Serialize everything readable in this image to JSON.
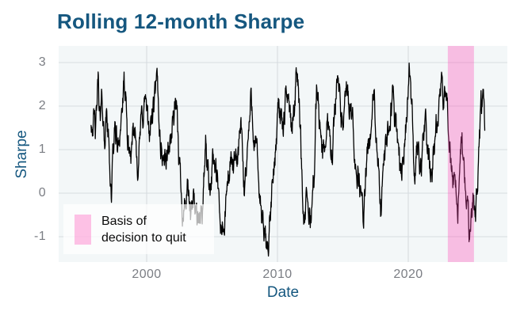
{
  "title": "Rolling 12-month Sharpe",
  "colors": {
    "page_bg": "#ffffff",
    "panel_bg": "#f3f7f8",
    "grid": "#d7dce0",
    "title": "#15577f",
    "axis_title": "#15577f",
    "tick_label": "#7b7e84",
    "line": "#000000",
    "band_pink": "#ff45b5",
    "legend_bg": "#ffffff"
  },
  "chart_data": {
    "type": "line",
    "title": "Rolling 12-month Sharpe",
    "xlabel": "Date",
    "ylabel": "Sharpe",
    "x_ticks": [
      2000,
      2010,
      2020
    ],
    "y_ticks": [
      -1,
      0,
      1,
      2,
      3
    ],
    "xlim": [
      1993.27,
      2027.58
    ],
    "ylim": [
      -1.582,
      3.382
    ],
    "grid": true,
    "line_color": "#000000",
    "highlight_band": {
      "x0": 2023.03,
      "x1": 2025.03,
      "color": "#ff45b5",
      "opacity": 0.32,
      "label": "Basis of decision to quit"
    },
    "legend": {
      "position": "bottom-left",
      "lines": [
        "Basis of",
        "decision to quit"
      ],
      "bg_opacity": 0.7
    },
    "series": [
      {
        "name": "rolling_12m_sharpe",
        "keypoints": [
          [
            1995.75,
            1.68
          ],
          [
            1995.9,
            1.85
          ],
          [
            1996.1,
            1.3
          ],
          [
            1996.3,
            2.61
          ],
          [
            1996.45,
            1.55
          ],
          [
            1996.6,
            2.05
          ],
          [
            1996.75,
            1.3
          ],
          [
            1996.95,
            1.85
          ],
          [
            1997.1,
            1.1
          ],
          [
            1997.3,
            0.02
          ],
          [
            1997.45,
            1.0
          ],
          [
            1997.6,
            1.5
          ],
          [
            1997.8,
            0.95
          ],
          [
            1998.0,
            1.7
          ],
          [
            1998.3,
            2.38
          ],
          [
            1998.55,
            1.05
          ],
          [
            1998.9,
            0.8
          ],
          [
            1999.1,
            1.4
          ],
          [
            1999.3,
            0.8
          ],
          [
            1999.6,
            1.6
          ],
          [
            1999.9,
            2.22
          ],
          [
            2000.1,
            1.3
          ],
          [
            2000.4,
            1.7
          ],
          [
            2000.8,
            2.35
          ],
          [
            2001.1,
            1.05
          ],
          [
            2001.5,
            0.75
          ],
          [
            2001.8,
            1.25
          ],
          [
            2002.2,
            2.04
          ],
          [
            2002.5,
            0.65
          ],
          [
            2002.8,
            -0.38
          ],
          [
            2003.1,
            0.0
          ],
          [
            2003.4,
            -0.6
          ],
          [
            2003.7,
            -0.1
          ],
          [
            2004.0,
            -0.75
          ],
          [
            2004.3,
            -0.25
          ],
          [
            2004.5,
            1.16
          ],
          [
            2004.8,
            0.3
          ],
          [
            2005.1,
            0.75
          ],
          [
            2005.4,
            0.2
          ],
          [
            2005.6,
            -0.8
          ],
          [
            2005.9,
            -0.84
          ],
          [
            2006.2,
            0.2
          ],
          [
            2006.5,
            0.85
          ],
          [
            2006.8,
            0.4
          ],
          [
            2007.2,
            1.47
          ],
          [
            2007.45,
            0.0
          ],
          [
            2007.7,
            1.05
          ],
          [
            2008.0,
            2.16
          ],
          [
            2008.3,
            1.2
          ],
          [
            2008.6,
            0.1
          ],
          [
            2008.9,
            -0.9
          ],
          [
            2009.2,
            -1.35
          ],
          [
            2009.5,
            -0.4
          ],
          [
            2009.8,
            0.8
          ],
          [
            2010.1,
            2.29
          ],
          [
            2010.4,
            1.35
          ],
          [
            2010.8,
            2.47
          ],
          [
            2011.1,
            1.4
          ],
          [
            2011.5,
            3.13
          ],
          [
            2011.8,
            1.1
          ],
          [
            2012.0,
            -0.51
          ],
          [
            2012.3,
            -0.35
          ],
          [
            2012.55,
            -0.62
          ],
          [
            2012.8,
            0.55
          ],
          [
            2013.0,
            2.31
          ],
          [
            2013.3,
            1.4
          ],
          [
            2013.5,
            0.8
          ],
          [
            2013.9,
            1.76
          ],
          [
            2014.2,
            0.84
          ],
          [
            2014.6,
            3.13
          ],
          [
            2014.9,
            1.5
          ],
          [
            2015.3,
            2.13
          ],
          [
            2015.6,
            1.8
          ],
          [
            2016.0,
            0.7
          ],
          [
            2016.2,
            0.44
          ],
          [
            2016.55,
            -0.56
          ],
          [
            2016.9,
            0.8
          ],
          [
            2017.2,
            1.6
          ],
          [
            2017.4,
            2.13
          ],
          [
            2017.9,
            -0.53
          ],
          [
            2018.2,
            0.7
          ],
          [
            2018.8,
            2.38
          ],
          [
            2019.2,
            1.29
          ],
          [
            2019.5,
            0.49
          ],
          [
            2019.8,
            1.5
          ],
          [
            2020.1,
            2.75
          ],
          [
            2020.5,
            0.6
          ],
          [
            2020.75,
            1.2
          ],
          [
            2021.0,
            0.55
          ],
          [
            2021.3,
            1.5
          ],
          [
            2021.7,
            0.38
          ],
          [
            2022.0,
            0.85
          ],
          [
            2022.2,
            1.5
          ],
          [
            2022.5,
            2.49
          ],
          [
            2022.7,
            1.8
          ],
          [
            2022.95,
            2.42
          ],
          [
            2023.15,
            1.22
          ],
          [
            2023.35,
            0.5
          ],
          [
            2023.55,
            0.35
          ],
          [
            2023.8,
            -0.23
          ],
          [
            2024.1,
            1.31
          ],
          [
            2024.4,
            -0.11
          ],
          [
            2024.7,
            -1.23
          ],
          [
            2024.95,
            0.02
          ],
          [
            2025.15,
            -0.69
          ],
          [
            2025.45,
            1.41
          ],
          [
            2025.7,
            2.16
          ],
          [
            2025.85,
            1.62
          ]
        ],
        "clip": [
          -1.45,
          3.22
        ]
      }
    ],
    "noise": {
      "seed": 42,
      "step_years": 0.02,
      "persistence": 0.8,
      "impulse": 0.5
    }
  }
}
